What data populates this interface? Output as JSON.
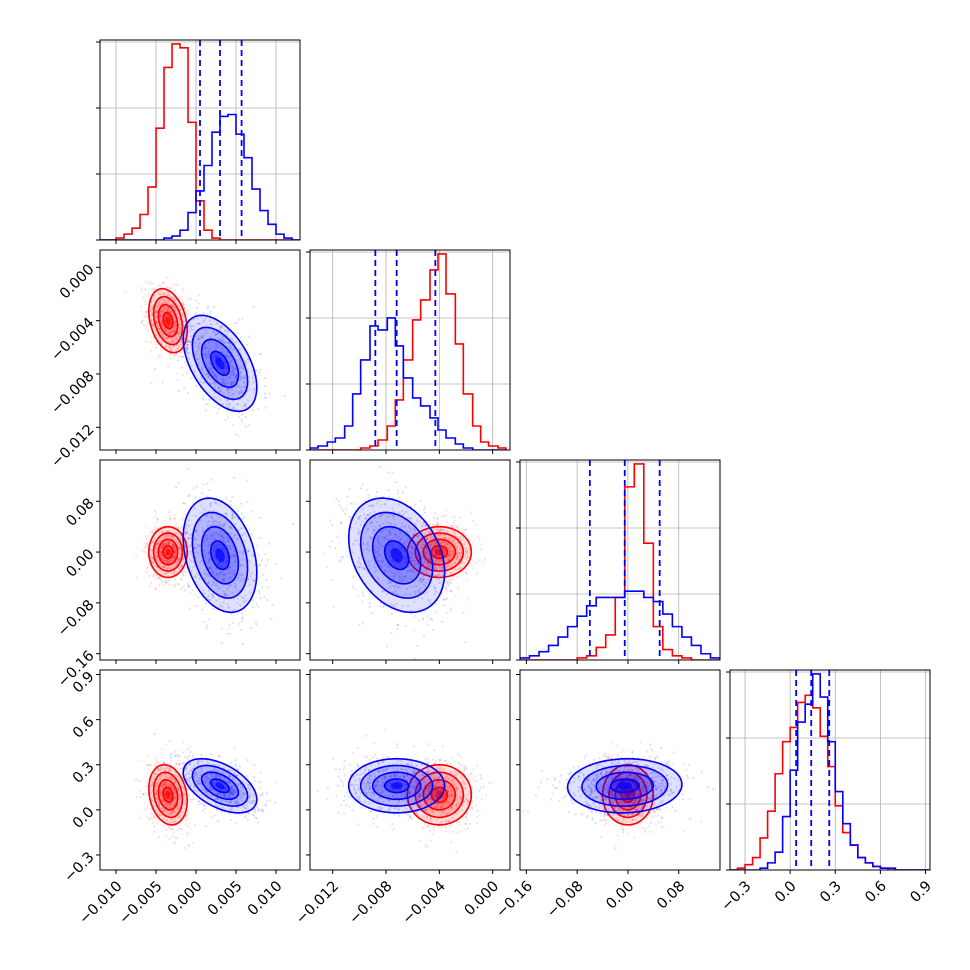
{
  "chart_data": {
    "type": "corner",
    "parameters": 4,
    "grid": true,
    "series_colors": [
      "#ff0000",
      "#0000ff"
    ],
    "series": [
      {
        "color": "#ff0000",
        "mean": [
          -0.0035,
          -0.004,
          0.0,
          0.1
        ],
        "sd": [
          0.0012,
          0.0012,
          0.02,
          0.1
        ],
        "corr": {
          "p0p1": -0.3,
          "p0p2": 0.0,
          "p0p3": -0.2,
          "p1p2": 0.0,
          "p1p3": 0.0,
          "p2p3": 0.0
        }
      },
      {
        "color": "#0000ff",
        "mean": [
          0.003,
          -0.0072,
          -0.005,
          0.16
        ],
        "sd": [
          0.0023,
          0.0018,
          0.045,
          0.09
        ],
        "corr": {
          "p0p1": -0.5,
          "p0p2": -0.3,
          "p0p3": -0.5,
          "p1p2": -0.3,
          "p1p3": 0.0,
          "p2p3": 0.05
        }
      }
    ],
    "quantile_lines": {
      "color": "#0000ff",
      "style": "dashed",
      "p0": [
        0.0005,
        0.003,
        0.0057
      ],
      "p1": [
        -0.0088,
        -0.0072,
        -0.0043
      ],
      "p2": [
        -0.06,
        -0.005,
        0.05
      ],
      "p3": [
        0.04,
        0.14,
        0.26
      ]
    },
    "axes": {
      "p0": {
        "range": [
          -0.012,
          0.013
        ],
        "ticks": [
          "−0.010",
          "−0.005",
          "0.000",
          "0.005",
          "0.010"
        ],
        "tick_values": [
          -0.01,
          -0.005,
          0.0,
          0.005,
          0.01
        ]
      },
      "p1": {
        "range": [
          -0.0137,
          0.0013
        ],
        "ticks": [
          "−0.012",
          "−0.008",
          "−0.004",
          "0.000"
        ],
        "tick_values": [
          -0.012,
          -0.008,
          -0.004,
          0.0
        ]
      },
      "p2": {
        "range": [
          -0.17,
          0.145
        ],
        "ticks": [
          "−0.16",
          "−0.08",
          "0.00",
          "0.08"
        ],
        "tick_values": [
          -0.16,
          -0.08,
          0.0,
          0.08
        ]
      },
      "p3": {
        "range": [
          -0.4,
          0.93
        ],
        "ticks": [
          "−0.3",
          "0.0",
          "0.3",
          "0.6",
          "0.9"
        ],
        "tick_values": [
          -0.3,
          0.0,
          0.3,
          0.6,
          0.9
        ]
      }
    },
    "histograms": {
      "p0": {
        "bins": [
          -0.012,
          -0.011,
          -0.01,
          -0.009,
          -0.008,
          -0.007,
          -0.006,
          -0.005,
          -0.004,
          -0.003,
          -0.002,
          -0.001,
          0.0,
          0.001,
          0.002,
          0.003,
          0.004,
          0.005,
          0.006,
          0.007,
          0.008,
          0.009,
          0.01,
          0.011,
          0.012,
          0.013
        ],
        "red": [
          0,
          0,
          0.01,
          0.03,
          0.06,
          0.13,
          0.27,
          0.57,
          0.88,
          1.0,
          0.98,
          0.6,
          0.2,
          0.05,
          0.01,
          0.0,
          0,
          0,
          0,
          0,
          0,
          0,
          0,
          0,
          0
        ],
        "blue": [
          0,
          0,
          0,
          0,
          0,
          0,
          0,
          0,
          0.01,
          0.02,
          0.05,
          0.14,
          0.25,
          0.38,
          0.55,
          0.63,
          0.64,
          0.54,
          0.42,
          0.26,
          0.15,
          0.08,
          0.03,
          0.01,
          0
        ]
      },
      "p1": {
        "bins": [
          -0.0137,
          -0.0131,
          -0.0124,
          -0.0118,
          -0.0111,
          -0.0105,
          -0.0099,
          -0.0092,
          -0.0086,
          -0.0079,
          -0.0073,
          -0.0067,
          -0.006,
          -0.0054,
          -0.0047,
          -0.0041,
          -0.0035,
          -0.0028,
          -0.0022,
          -0.0015,
          -0.0009,
          -0.0003,
          0.0004,
          0.001
        ],
        "red": [
          0,
          0,
          0,
          0,
          0,
          0,
          0.01,
          0.02,
          0.05,
          0.12,
          0.25,
          0.45,
          0.65,
          0.75,
          0.9,
          0.98,
          0.78,
          0.53,
          0.28,
          0.12,
          0.04,
          0.02,
          0.01
        ],
        "blue": [
          0.01,
          0.02,
          0.04,
          0.06,
          0.12,
          0.28,
          0.45,
          0.62,
          0.6,
          0.66,
          0.52,
          0.36,
          0.26,
          0.22,
          0.16,
          0.1,
          0.06,
          0.03,
          0.01,
          0,
          0,
          0,
          0
        ]
      },
      "p2": {
        "bins": [
          -0.17,
          -0.155,
          -0.14,
          -0.125,
          -0.11,
          -0.095,
          -0.08,
          -0.065,
          -0.05,
          -0.035,
          -0.02,
          -0.005,
          0.01,
          0.025,
          0.04,
          0.055,
          0.07,
          0.085,
          0.1,
          0.115,
          0.13,
          0.145
        ],
        "red": [
          0,
          0,
          0,
          0,
          0,
          0,
          0.01,
          0.02,
          0.06,
          0.12,
          0.3,
          0.83,
          0.94,
          0.56,
          0.16,
          0.05,
          0.02,
          0.01,
          0,
          0,
          0
        ],
        "blue": [
          0.01,
          0.02,
          0.04,
          0.07,
          0.11,
          0.16,
          0.21,
          0.26,
          0.3,
          0.3,
          0.3,
          0.33,
          0.33,
          0.3,
          0.28,
          0.22,
          0.16,
          0.11,
          0.07,
          0.03,
          0.01
        ]
      },
      "p3": {
        "bins": [
          -0.4,
          -0.35,
          -0.3,
          -0.25,
          -0.2,
          -0.15,
          -0.1,
          -0.05,
          0.0,
          0.05,
          0.1,
          0.15,
          0.2,
          0.25,
          0.3,
          0.35,
          0.4,
          0.45,
          0.5,
          0.55,
          0.6,
          0.65,
          0.7,
          0.75,
          0.8,
          0.85,
          0.9,
          0.93
        ],
        "red": [
          0,
          0.01,
          0.03,
          0.07,
          0.18,
          0.33,
          0.54,
          0.72,
          0.8,
          0.94,
          0.98,
          0.91,
          0.75,
          0.58,
          0.36,
          0.21,
          0.14,
          0.07,
          0.04,
          0.02,
          0.01,
          0,
          0,
          0,
          0,
          0,
          0
        ],
        "blue": [
          0,
          0,
          0,
          0,
          0.01,
          0.04,
          0.1,
          0.3,
          0.56,
          0.83,
          0.93,
          1.1,
          0.97,
          0.72,
          0.44,
          0.26,
          0.14,
          0.07,
          0.04,
          0.02,
          0.01,
          0.01,
          0,
          0,
          0,
          0,
          0
        ]
      }
    }
  }
}
